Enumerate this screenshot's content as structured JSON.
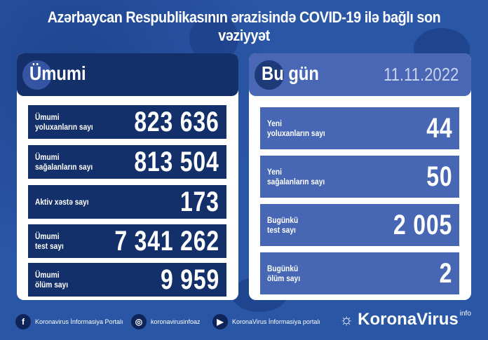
{
  "title": "Azərbaycan Respublikasının ərazisində COVID-19 ilə bağlı son vəziyyət",
  "total": {
    "heading": "Ümumi",
    "rows": [
      {
        "label": "Ümumi\nyoluxanların sayı",
        "value": "823 636"
      },
      {
        "label": "Ümumi\nsağalanların sayı",
        "value": "813 504"
      },
      {
        "label": "Aktiv xəstə sayı",
        "value": "173"
      },
      {
        "label": "Ümumi\ntest sayı",
        "value": "7 341 262"
      },
      {
        "label": "Ümumi\nölüm sayı",
        "value": "9 959"
      }
    ]
  },
  "today": {
    "heading": "Bu gün",
    "date": "11.11.2022",
    "rows": [
      {
        "label": "Yeni\nyoluxanların sayı",
        "value": "44"
      },
      {
        "label": "Yeni\nsağalanların sayı",
        "value": "50"
      },
      {
        "label": "Bugünkü\ntest sayı",
        "value": "2 005"
      },
      {
        "label": "Bugünkü\nölüm sayı",
        "value": "2"
      }
    ]
  },
  "footer": {
    "facebook": "Koronavirus İnformasiya Portalı",
    "instagram": "koronavirusinfoaz",
    "youtube": "KoronaVirus İnformasiya portalı",
    "logo": "KoronaVirus",
    "logo_sup": "info"
  }
}
